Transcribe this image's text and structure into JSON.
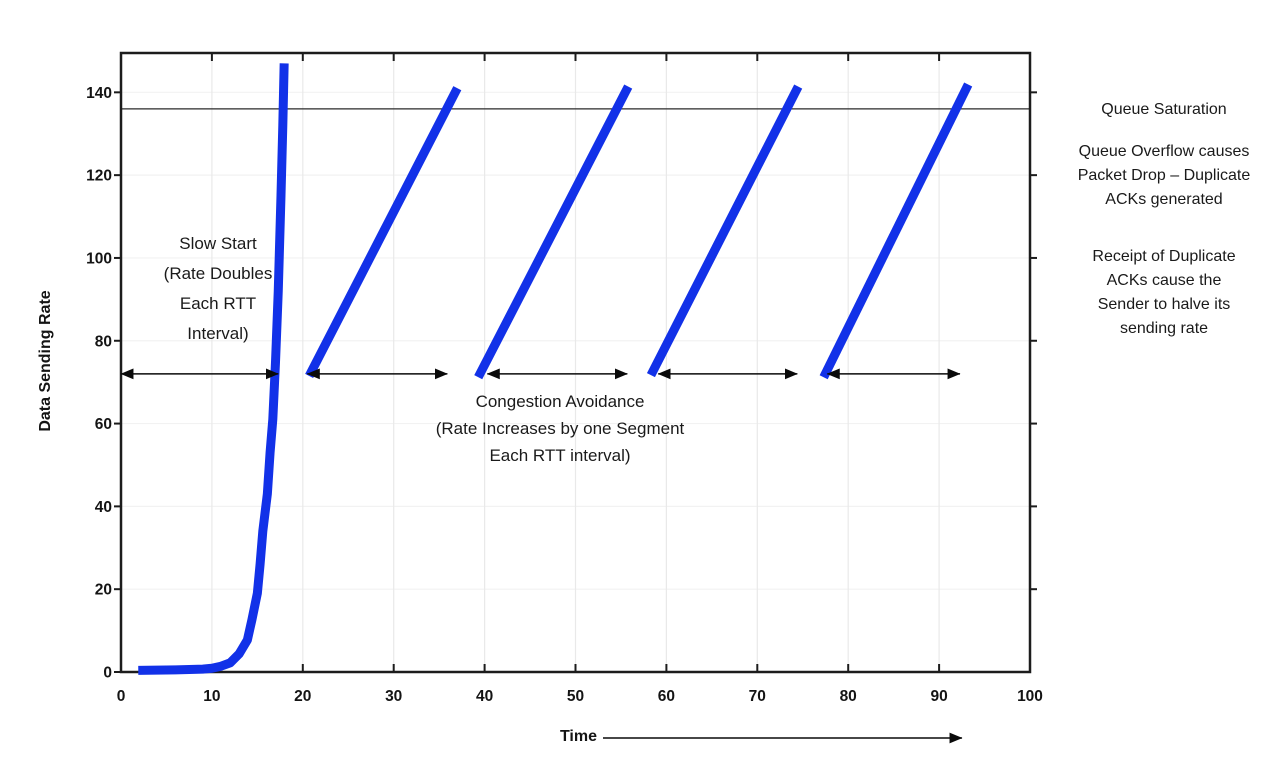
{
  "chart_data": {
    "type": "line",
    "title": "",
    "xlabel": "Time",
    "ylabel": "Data Sending Rate",
    "xlim": [
      0,
      100
    ],
    "ylim": [
      0,
      149.5
    ],
    "x_ticks": [
      0,
      10,
      20,
      30,
      40,
      50,
      60,
      70,
      80,
      90,
      100
    ],
    "y_ticks": [
      0,
      20,
      40,
      60,
      80,
      100,
      120,
      140
    ],
    "grid": true,
    "legend": "none",
    "line_width": 9,
    "series": [
      {
        "name": "slow-start-curve",
        "points": [
          [
            1.9,
            0.4
          ],
          [
            6,
            0.5
          ],
          [
            9,
            0.7
          ],
          [
            10,
            0.9
          ],
          [
            11,
            1.4
          ],
          [
            12,
            2.2
          ],
          [
            13,
            4.4
          ],
          [
            13.9,
            7.7
          ],
          [
            14.4,
            12.6
          ],
          [
            15,
            19
          ],
          [
            15.3,
            26
          ],
          [
            15.6,
            34
          ],
          [
            16.1,
            43
          ],
          [
            16.4,
            53
          ],
          [
            16.7,
            61
          ],
          [
            17.0,
            75
          ],
          [
            17.3,
            92
          ],
          [
            17.6,
            115
          ],
          [
            17.8,
            132
          ],
          [
            17.95,
            147
          ]
        ]
      },
      {
        "name": "congestion-avoidance-ramp-1",
        "points": [
          [
            20.7,
            71.5
          ],
          [
            37.0,
            141.0
          ]
        ]
      },
      {
        "name": "congestion-avoidance-ramp-2",
        "points": [
          [
            39.3,
            71.2
          ],
          [
            55.8,
            141.4
          ]
        ]
      },
      {
        "name": "congestion-avoidance-ramp-3",
        "points": [
          [
            58.3,
            71.7
          ],
          [
            74.5,
            141.4
          ]
        ]
      },
      {
        "name": "congestion-avoidance-ramp-4",
        "points": [
          [
            77.3,
            71.2
          ],
          [
            93.2,
            141.9
          ]
        ]
      }
    ],
    "saturation_line": {
      "y": 136
    },
    "interval_arrows": {
      "y": 72,
      "spans": [
        [
          0,
          17.3
        ],
        [
          20.5,
          35.9
        ],
        [
          40.3,
          55.7
        ],
        [
          59.1,
          74.4
        ],
        [
          77.7,
          92.3
        ]
      ]
    },
    "annotations": {
      "slow_start": "Slow Start\n(Rate Doubles\nEach RTT\nInterval)",
      "congestion_avoidance": "Congestion Avoidance\n(Rate Increases by one Segment\nEach RTT interval)"
    },
    "colors": {
      "curve": "#1231e8",
      "axis": "#1c1c1c",
      "grid_vertical": "#e9e9e9",
      "grid_horizontal": "#f2f2f2",
      "saturation_line": "#2a2a2a",
      "arrow": "#0a0a0a",
      "text": "#1f1f1f"
    }
  },
  "right_panel": {
    "queue_saturation": "Queue Saturation",
    "queue_overflow": "Queue Overflow causes\nPacket Drop – Duplicate\nACKs generated",
    "duplicate_acks": "Receipt of Duplicate\nACKs cause the\nSender to halve its\nsending rate"
  }
}
